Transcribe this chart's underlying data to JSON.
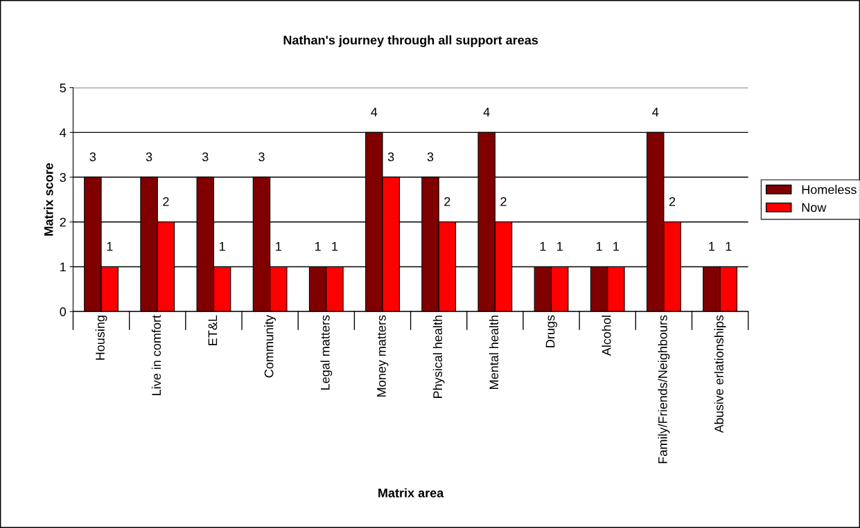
{
  "chart_data": {
    "type": "bar",
    "title": "Nathan's journey through all support areas",
    "xlabel": "Matrix area",
    "ylabel": "Matrix score",
    "categories": [
      "Housing",
      "Live in comfort",
      "ET&L",
      "Community",
      "Legal matters",
      "Money matters",
      "Physical health",
      "Mental health",
      "Drugs",
      "Alcohol",
      "Family/Friends/Neighbours",
      "Abusive erlationships"
    ],
    "series": [
      {
        "name": "Homeless",
        "color": "#800000",
        "values": [
          3,
          3,
          3,
          3,
          1,
          4,
          3,
          4,
          1,
          1,
          4,
          1
        ]
      },
      {
        "name": "Now",
        "color": "#ff0000",
        "values": [
          1,
          2,
          1,
          1,
          1,
          3,
          2,
          2,
          1,
          1,
          2,
          1
        ]
      }
    ],
    "ylim": [
      0,
      5
    ],
    "yticks": [
      0,
      1,
      2,
      3,
      4,
      5
    ],
    "grid": "y",
    "legend": "right",
    "data_labels": true
  }
}
